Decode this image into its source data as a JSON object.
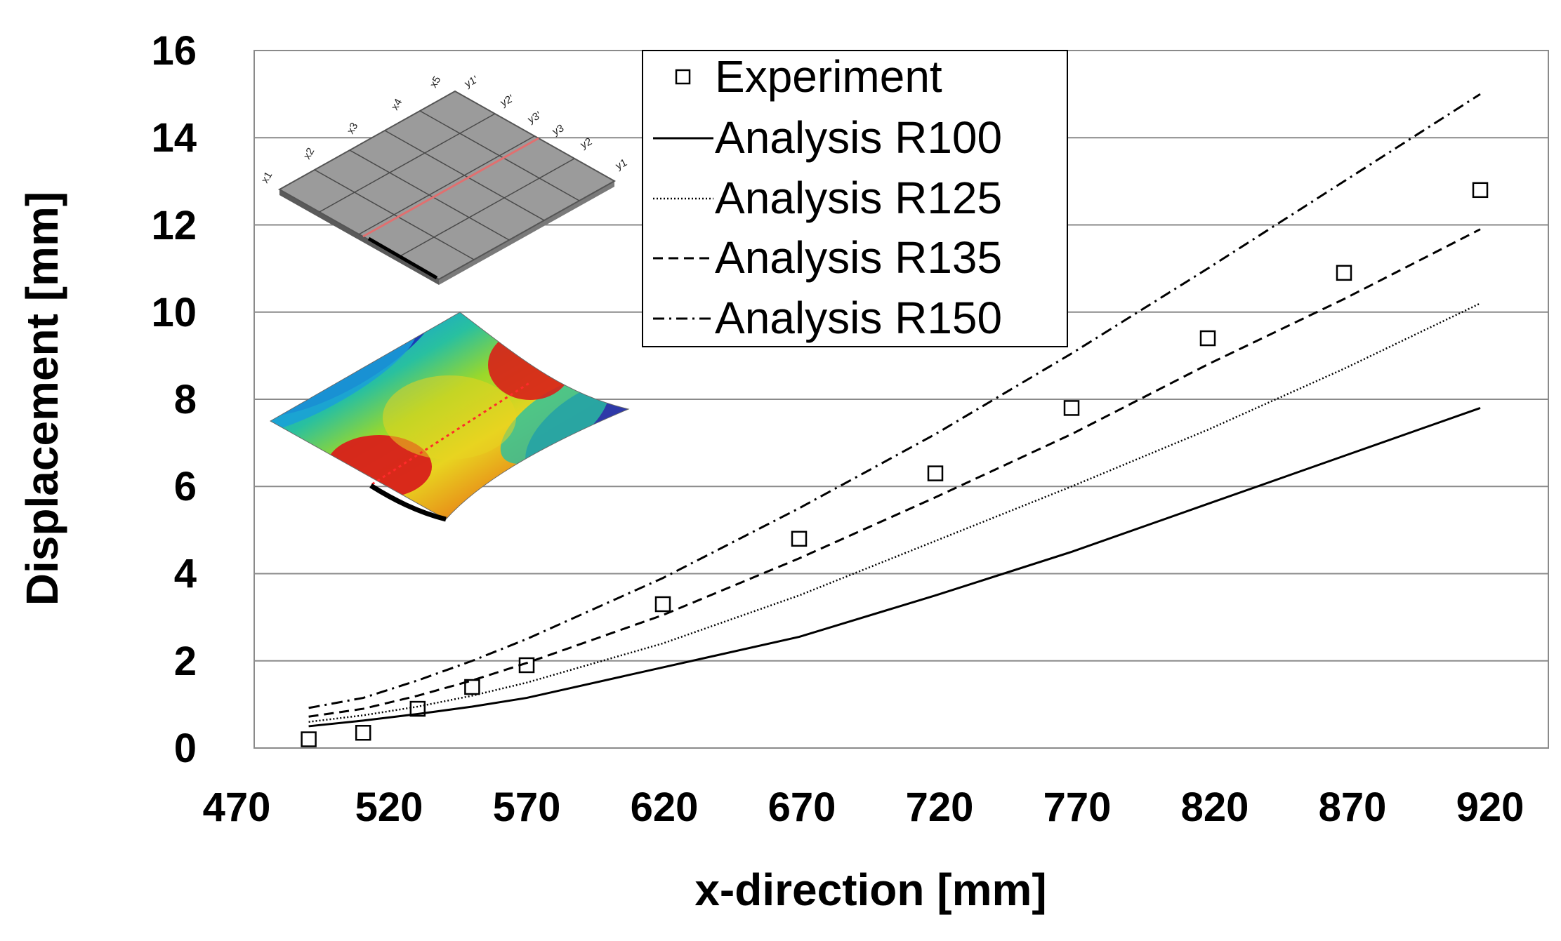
{
  "chart_data": {
    "type": "line",
    "xlabel": "x-direction [mm]",
    "ylabel": "Displacement [mm]",
    "xlim": [
      470,
      945
    ],
    "ylim": [
      0,
      16
    ],
    "x_ticks": [
      "470",
      "520",
      "570",
      "620",
      "670",
      "720",
      "770",
      "820",
      "870",
      "920"
    ],
    "y_ticks": [
      "0",
      "2",
      "4",
      "6",
      "8",
      "10",
      "12",
      "14",
      "16"
    ],
    "grid": "horizontal",
    "legend_position": "top-center",
    "series": [
      {
        "name": "Experiment",
        "style": "square-markers",
        "x": [
          490,
          510,
          530,
          550,
          570,
          620,
          670,
          720,
          770,
          820,
          870,
          920
        ],
        "y": [
          0.2,
          0.35,
          0.9,
          1.4,
          1.9,
          3.3,
          4.8,
          6.3,
          7.8,
          9.4,
          10.9,
          12.8
        ]
      },
      {
        "name": "Analysis R100",
        "style": "solid",
        "x": [
          490,
          510,
          530,
          550,
          570,
          620,
          670,
          720,
          770,
          820,
          870,
          920
        ],
        "y": [
          0.5,
          0.63,
          0.78,
          0.95,
          1.15,
          1.85,
          2.55,
          3.5,
          4.5,
          5.6,
          6.7,
          7.8
        ]
      },
      {
        "name": "Analysis R125",
        "style": "dotted",
        "x": [
          490,
          510,
          530,
          550,
          570,
          620,
          670,
          720,
          770,
          820,
          870,
          920
        ],
        "y": [
          0.6,
          0.75,
          0.95,
          1.2,
          1.5,
          2.4,
          3.5,
          4.75,
          6.0,
          7.3,
          8.7,
          10.2
        ]
      },
      {
        "name": "Analysis R135",
        "style": "dashed",
        "x": [
          490,
          510,
          530,
          550,
          570,
          620,
          670,
          720,
          770,
          820,
          870,
          920
        ],
        "y": [
          0.72,
          0.9,
          1.2,
          1.55,
          1.95,
          3.05,
          4.35,
          5.75,
          7.2,
          8.8,
          10.3,
          11.9
        ]
      },
      {
        "name": "Analysis R150",
        "style": "dash-dot",
        "x": [
          490,
          510,
          530,
          550,
          570,
          620,
          670,
          720,
          770,
          820,
          870,
          920
        ],
        "y": [
          0.92,
          1.15,
          1.55,
          2.0,
          2.5,
          3.9,
          5.5,
          7.2,
          9.05,
          11.0,
          13.0,
          15.0
        ]
      }
    ],
    "inset_labels": [
      "x1",
      "x2",
      "x3",
      "x4",
      "x5",
      "y1'",
      "y2'",
      "y3'",
      "y3",
      "y2",
      "y1"
    ]
  }
}
